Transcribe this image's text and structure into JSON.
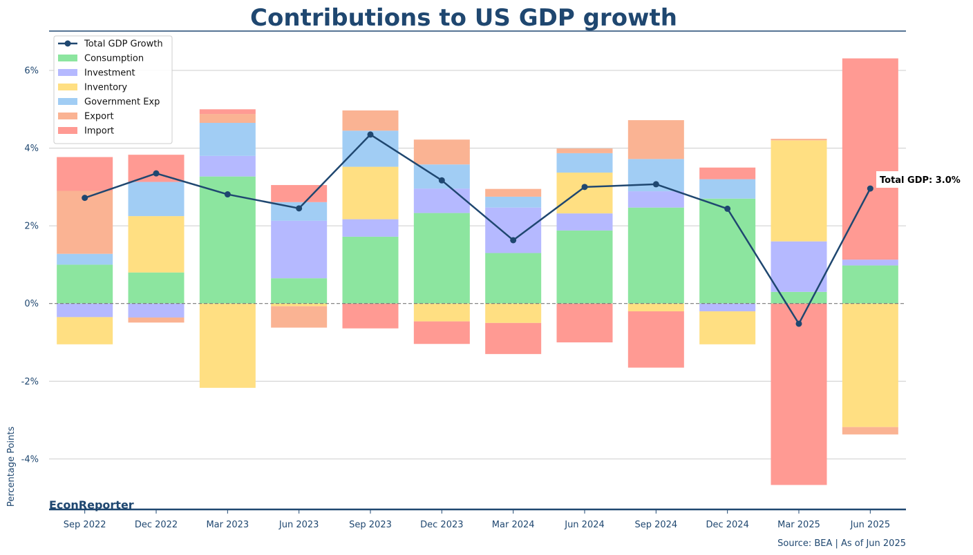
{
  "chart_data": {
    "type": "bar",
    "title": "Contributions to US GDP growth",
    "ylabel": "Percentage Points",
    "xlabel": "",
    "brand": "EconReporter",
    "source": "Source: BEA | As of Jun 2025",
    "annotation": "Total GDP: 3.0%",
    "ylim": [
      -5.3,
      6.8
    ],
    "yticks": [
      -4,
      -2,
      0,
      2,
      4,
      6
    ],
    "ytick_labels": [
      "-4%",
      "-2%",
      "0%",
      "2%",
      "4%",
      "6%"
    ],
    "grid": true,
    "legend_position": "top-left",
    "categories": [
      "Sep 2022",
      "Dec 2022",
      "Mar 2023",
      "Jun 2023",
      "Sep 2023",
      "Dec 2023",
      "Mar 2024",
      "Jun 2024",
      "Sep 2024",
      "Dec 2024",
      "Mar 2025",
      "Jun 2025"
    ],
    "series": [
      {
        "name": "Consumption",
        "color": "#8ce59f",
        "values": [
          1.0,
          0.8,
          3.27,
          0.65,
          1.72,
          2.33,
          1.3,
          1.88,
          2.47,
          2.7,
          0.3,
          0.98
        ]
      },
      {
        "name": "Investment",
        "color": "#b5b9ff",
        "values": [
          -0.35,
          -0.36,
          0.53,
          1.48,
          0.45,
          0.63,
          1.17,
          0.44,
          0.42,
          -0.2,
          1.3,
          0.15
        ]
      },
      {
        "name": "Inventory",
        "color": "#ffdf82",
        "values": [
          -0.7,
          1.45,
          -2.17,
          -0.07,
          1.35,
          -0.46,
          -0.5,
          1.05,
          -0.2,
          -0.85,
          2.6,
          -3.18
        ]
      },
      {
        "name": "Government Exp",
        "color": "#a1cdf4",
        "values": [
          0.28,
          0.88,
          0.85,
          0.48,
          0.93,
          0.62,
          0.28,
          0.5,
          0.83,
          0.5,
          0.0,
          0.0
        ]
      },
      {
        "name": "Export",
        "color": "#fab393",
        "values": [
          1.62,
          -0.13,
          0.23,
          -0.55,
          0.52,
          0.64,
          0.2,
          0.12,
          1.0,
          0.0,
          0.04,
          -0.19
        ]
      },
      {
        "name": "Import",
        "color": "#ff9a93",
        "values": [
          0.87,
          0.7,
          0.12,
          0.44,
          -0.64,
          -0.58,
          -0.8,
          -1.0,
          -1.45,
          0.3,
          -4.67,
          5.18
        ]
      }
    ],
    "line": {
      "name": "Total GDP Growth",
      "color": "#1f4770",
      "values": [
        2.72,
        3.35,
        2.81,
        2.45,
        4.35,
        3.17,
        1.63,
        3.0,
        3.07,
        2.44,
        -0.52,
        2.96
      ]
    }
  }
}
